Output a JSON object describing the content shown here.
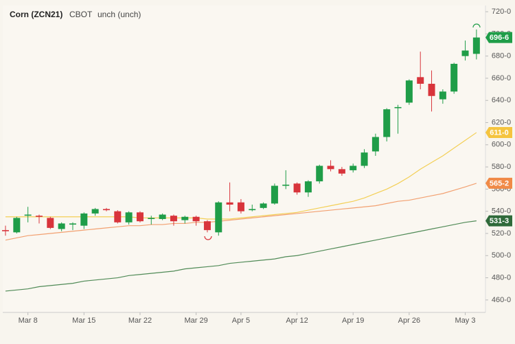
{
  "chart_data": {
    "type": "candlestick",
    "title": "Corn (ZCN21)",
    "exchange": "CBOT",
    "change": "unch (unch)",
    "categories": [
      null,
      null,
      "Mar 8",
      null,
      null,
      null,
      null,
      "Mar 15",
      null,
      null,
      null,
      null,
      "Mar 22",
      null,
      null,
      null,
      null,
      "Mar 29",
      null,
      null,
      null,
      "Apr 5",
      null,
      null,
      null,
      null,
      "Apr 12",
      null,
      null,
      null,
      null,
      "Apr 19",
      null,
      null,
      null,
      null,
      "Apr 26",
      null,
      null,
      null,
      null,
      "May 3",
      null
    ],
    "ohlc": {
      "open": [
        523,
        521,
        536,
        536,
        534,
        524,
        528,
        527,
        538,
        542,
        540,
        530,
        539,
        533,
        533,
        536,
        532,
        535,
        531,
        521,
        548,
        548,
        541,
        543,
        547,
        563,
        565,
        557,
        567,
        581,
        578,
        577,
        581,
        594,
        607,
        633,
        638,
        661,
        655,
        641,
        648,
        680,
        682
      ],
      "high": [
        527,
        535,
        544,
        537,
        535,
        530,
        530,
        539,
        543,
        543,
        541,
        540,
        540,
        536,
        538,
        537,
        536,
        536,
        532,
        549,
        566,
        551,
        546,
        548,
        565,
        577,
        566,
        568,
        582,
        586,
        580,
        583,
        596,
        610,
        633,
        636,
        659,
        684,
        667,
        650,
        674,
        694,
        704
      ],
      "low": [
        518,
        520,
        530,
        529,
        524,
        522,
        523,
        524,
        536,
        540,
        529,
        528,
        530,
        528,
        532,
        527,
        529,
        527,
        521,
        518,
        540,
        538,
        540,
        542,
        546,
        560,
        555,
        553,
        565,
        576,
        572,
        575,
        579,
        590,
        603,
        610,
        636,
        650,
        630,
        637,
        646,
        676,
        677
      ],
      "close": [
        522,
        534,
        537,
        535,
        525,
        529,
        529,
        538,
        542,
        541,
        530,
        539,
        531,
        534,
        537,
        531,
        535,
        531,
        523,
        548,
        546,
        540,
        542,
        547,
        563,
        564,
        557,
        567,
        581,
        578,
        574,
        581,
        593,
        607,
        632,
        634,
        658,
        655,
        644,
        648,
        673,
        685,
        696.75
      ],
      "last_label": "696-6",
      "up_color": "#1f9d48",
      "down_color": "#d8343b"
    },
    "overlays": [
      {
        "color": "#f3cf55",
        "badge_color": "#f5c43f",
        "last_label": "611-0",
        "values": [
          535,
          535,
          535,
          535,
          535,
          535,
          535,
          535,
          535,
          535,
          535,
          535,
          534,
          534,
          534,
          534,
          534,
          534,
          533,
          533,
          533,
          534,
          535,
          536,
          537,
          538,
          539,
          541,
          543,
          545,
          547,
          549,
          552,
          556,
          560,
          565,
          571,
          578,
          584,
          590,
          597,
          604,
          611
        ]
      },
      {
        "color": "#f2a070",
        "badge_color": "#f08a47",
        "last_label": "565-2",
        "values": [
          514,
          516,
          518,
          519,
          520,
          521,
          522,
          523,
          524,
          525,
          526,
          527,
          527,
          528,
          528,
          529,
          529,
          530,
          530,
          531,
          532,
          533,
          534,
          535,
          536,
          537,
          538,
          539,
          540,
          541,
          542,
          543,
          544,
          545,
          547,
          549,
          550,
          552,
          554,
          556,
          559,
          562,
          565.25
        ]
      },
      {
        "color": "#4f8a56",
        "badge_color": "#2f6a3a",
        "last_label": "531-3",
        "values": [
          468,
          469,
          470,
          472,
          473,
          474,
          475,
          477,
          478,
          479,
          480,
          482,
          483,
          484,
          485,
          486,
          488,
          489,
          490,
          491,
          493,
          494,
          495,
          496,
          497,
          499,
          500,
          502,
          504,
          506,
          508,
          510,
          512,
          514,
          516,
          518,
          520,
          522,
          524,
          526,
          528,
          530,
          531.375
        ]
      }
    ],
    "ylim": [
      450,
      725
    ],
    "yticks": [
      {
        "value": 460,
        "label": "460-0"
      },
      {
        "value": 480,
        "label": "480-0"
      },
      {
        "value": 500,
        "label": "500-0"
      },
      {
        "value": 520,
        "label": "520-0"
      },
      {
        "value": 540,
        "label": "540-0"
      },
      {
        "value": 560,
        "label": "560-0"
      },
      {
        "value": 580,
        "label": "580-0"
      },
      {
        "value": 600,
        "label": "600-0"
      },
      {
        "value": 620,
        "label": "620-0"
      },
      {
        "value": 640,
        "label": "640-0"
      },
      {
        "value": 660,
        "label": "660-0"
      },
      {
        "value": 680,
        "label": "680-0"
      },
      {
        "value": 700,
        "label": "700-0"
      },
      {
        "value": 720,
        "label": "720-0"
      }
    ]
  }
}
